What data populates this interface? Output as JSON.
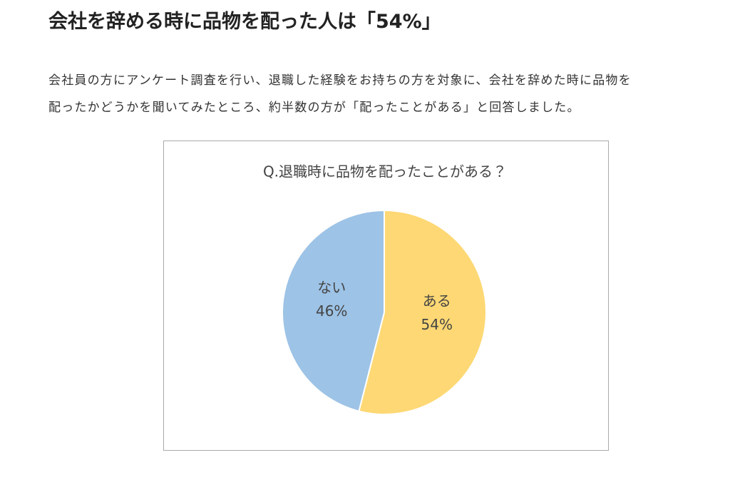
{
  "header": {
    "title": "会社を辞める時に品物を配った人は「54%」"
  },
  "paragraph": {
    "lines": [
      "会社員の方にアンケート調査を行い、退職した経験をお持ちの方を対象に、会社を辞めた時に品物を",
      "配ったかどうかを聞いてみたところ、約半数の方が「配ったことがある」と回答しました。"
    ]
  },
  "chart_data": {
    "type": "pie",
    "title": "Q.退職時に品物を配ったことがある？",
    "categories": [
      "ある",
      "ない"
    ],
    "values": [
      54,
      46
    ],
    "value_labels": [
      "54%",
      "46%"
    ],
    "colors": [
      "#fdd874",
      "#9dc3e6"
    ]
  }
}
